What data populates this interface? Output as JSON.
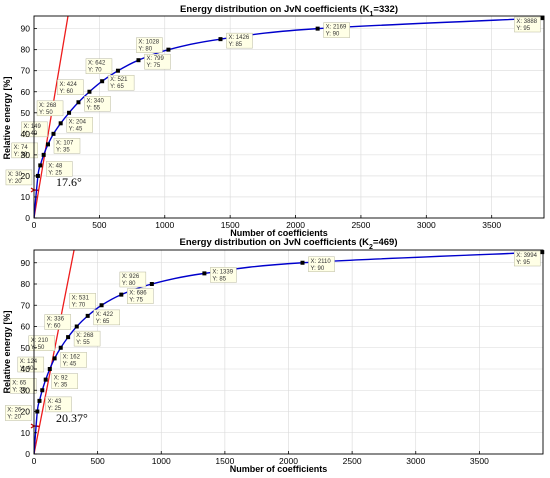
{
  "chart_data": [
    {
      "type": "line",
      "title": "Energy distribution on JvN coefficients (K",
      "title_sub": "1",
      "title_tail": "=332)",
      "xlabel": "Number of coefficients",
      "ylabel": "Relative energy [%]",
      "xlim": [
        0,
        3900
      ],
      "ylim": [
        0,
        96
      ],
      "xticks": [
        "0",
        "500",
        "1000",
        "1500",
        "2000",
        "2500",
        "3000",
        "3500"
      ],
      "xtick_values": [
        0,
        500,
        1000,
        1500,
        2000,
        2500,
        3000,
        3500
      ],
      "yticks": [
        "0",
        "10",
        "20",
        "30",
        "40",
        "50",
        "60",
        "70",
        "80",
        "90"
      ],
      "ytick_values": [
        0,
        10,
        20,
        30,
        40,
        50,
        60,
        70,
        80,
        90
      ],
      "grid": true,
      "angle_label": "17.6°",
      "tangent_line": {
        "x": [
          0,
          260
        ],
        "y": [
          0,
          96
        ]
      },
      "series": [
        {
          "x": [
            30,
            48,
            74,
            107,
            149,
            204,
            268,
            340,
            424,
            521,
            642,
            799,
            1028,
            1426,
            2169,
            3888
          ],
          "y": [
            20,
            25,
            30,
            35,
            40,
            45,
            50,
            55,
            60,
            65,
            70,
            75,
            80,
            85,
            90,
            95
          ]
        }
      ],
      "datatips": [
        {
          "x": 30,
          "y": 20,
          "lx": "X: 30",
          "ly": "Y: 20"
        },
        {
          "x": 48,
          "y": 25,
          "lx": "X: 48",
          "ly": "Y: 25"
        },
        {
          "x": 74,
          "y": 30,
          "lx": "X: 74",
          "ly": "Y: 30"
        },
        {
          "x": 107,
          "y": 35,
          "lx": "X: 107",
          "ly": "Y: 35"
        },
        {
          "x": 149,
          "y": 40,
          "lx": "X: 149",
          "ly": "Y: 40"
        },
        {
          "x": 204,
          "y": 45,
          "lx": "X: 204",
          "ly": "Y: 45"
        },
        {
          "x": 268,
          "y": 50,
          "lx": "X: 268",
          "ly": "Y: 50"
        },
        {
          "x": 340,
          "y": 55,
          "lx": "X: 340",
          "ly": "Y: 55"
        },
        {
          "x": 424,
          "y": 60,
          "lx": "X: 424",
          "ly": "Y: 60"
        },
        {
          "x": 521,
          "y": 65,
          "lx": "X: 521",
          "ly": "Y: 65"
        },
        {
          "x": 642,
          "y": 70,
          "lx": "X: 642",
          "ly": "Y: 70"
        },
        {
          "x": 799,
          "y": 75,
          "lx": "X: 799",
          "ly": "Y: 75"
        },
        {
          "x": 1028,
          "y": 80,
          "lx": "X: 1028",
          "ly": "Y: 80"
        },
        {
          "x": 1426,
          "y": 85,
          "lx": "X: 1426",
          "ly": "Y: 85"
        },
        {
          "x": 2169,
          "y": 90,
          "lx": "X: 2169",
          "ly": "Y: 90"
        },
        {
          "x": 3888,
          "y": 95,
          "lx": "X: 3888",
          "ly": "Y: 95"
        }
      ]
    },
    {
      "type": "line",
      "title": "Energy distribution on JvN coefficients (K",
      "title_sub": "2",
      "title_tail": "=469)",
      "xlabel": "Number of coefficients",
      "ylabel": "Relative energy [%]",
      "xlim": [
        0,
        4000
      ],
      "ylim": [
        0,
        96
      ],
      "xticks": [
        "0",
        "500",
        "1000",
        "1500",
        "2000",
        "2500",
        "3000",
        "3500"
      ],
      "xtick_values": [
        0,
        500,
        1000,
        1500,
        2000,
        2500,
        3000,
        3500
      ],
      "yticks": [
        "0",
        "10",
        "20",
        "30",
        "40",
        "50",
        "60",
        "70",
        "80",
        "90"
      ],
      "ytick_values": [
        0,
        10,
        20,
        30,
        40,
        50,
        60,
        70,
        80,
        90
      ],
      "grid": true,
      "angle_label": "20.37°",
      "tangent_line": {
        "x": [
          0,
          315
        ],
        "y": [
          0,
          96
        ]
      },
      "series": [
        {
          "x": [
            26,
            43,
            65,
            92,
            124,
            162,
            210,
            268,
            336,
            422,
            531,
            686,
            926,
            1339,
            2110,
            3994
          ],
          "y": [
            20,
            25,
            30,
            35,
            40,
            45,
            50,
            55,
            60,
            65,
            70,
            75,
            80,
            85,
            90,
            95
          ]
        }
      ],
      "datatips": [
        {
          "x": 26,
          "y": 20,
          "lx": "X: 26",
          "ly": "Y: 20"
        },
        {
          "x": 43,
          "y": 25,
          "lx": "X: 43",
          "ly": "Y: 25"
        },
        {
          "x": 65,
          "y": 30,
          "lx": "X: 65",
          "ly": "Y: 30"
        },
        {
          "x": 92,
          "y": 35,
          "lx": "X: 92",
          "ly": "Y: 35"
        },
        {
          "x": 124,
          "y": 40,
          "lx": "X: 124",
          "ly": "Y: 40"
        },
        {
          "x": 162,
          "y": 45,
          "lx": "X: 162",
          "ly": "Y: 45"
        },
        {
          "x": 210,
          "y": 50,
          "lx": "X: 210",
          "ly": "Y: 50"
        },
        {
          "x": 268,
          "y": 55,
          "lx": "X: 268",
          "ly": "Y: 55"
        },
        {
          "x": 336,
          "y": 60,
          "lx": "X: 336",
          "ly": "Y: 60"
        },
        {
          "x": 422,
          "y": 65,
          "lx": "X: 422",
          "ly": "Y: 65"
        },
        {
          "x": 531,
          "y": 70,
          "lx": "X: 531",
          "ly": "Y: 70"
        },
        {
          "x": 686,
          "y": 75,
          "lx": "X: 686",
          "ly": "Y: 75"
        },
        {
          "x": 926,
          "y": 80,
          "lx": "X: 926",
          "ly": "Y: 80"
        },
        {
          "x": 1339,
          "y": 85,
          "lx": "X: 1339",
          "ly": "Y: 85"
        },
        {
          "x": 2110,
          "y": 90,
          "lx": "X: 2110",
          "ly": "Y: 90"
        },
        {
          "x": 3994,
          "y": 95,
          "lx": "X: 3994",
          "ly": "Y: 95"
        }
      ]
    }
  ],
  "colors": {
    "curve": "#0000cc",
    "tangent": "#ee1c1c",
    "angle_arc": "#cc0000",
    "marker": "#000000",
    "grid": "#d9d9d9",
    "datatip_bg": "#ffffe6",
    "datatip_border": "#b8b8a0"
  }
}
